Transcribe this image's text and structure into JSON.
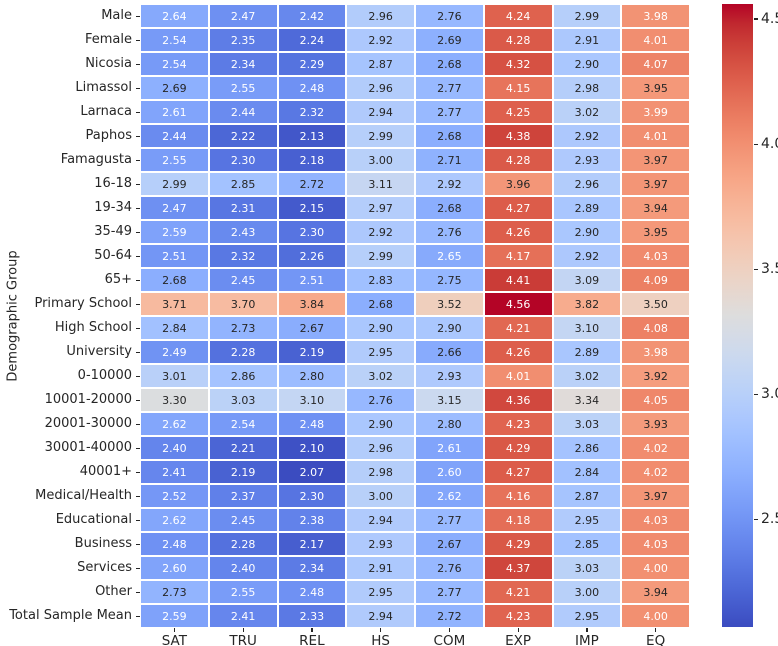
{
  "chart_data": {
    "type": "heatmap",
    "title": "",
    "xlabel": "",
    "ylabel": "Demographic Group",
    "colormap": "coolwarm",
    "vmin": 2.07,
    "vmax": 4.56,
    "annotated": true,
    "annotation_decimals": 2,
    "grid": false,
    "legend_position": "right-colorbar",
    "colorbar_ticks": [
      4.5,
      4.0,
      3.5,
      3.0,
      2.5
    ],
    "columns": [
      "SAT",
      "TRU",
      "REL",
      "HS",
      "COM",
      "EXP",
      "IMP",
      "EQ"
    ],
    "rows": [
      "Male",
      "Female",
      "Nicosia",
      "Limassol",
      "Larnaca",
      "Paphos",
      "Famagusta",
      "16-18",
      "19-34",
      "35-49",
      "50-64",
      "65+",
      "Primary School",
      "High School",
      "University",
      "0-10000",
      "10001-20000",
      "20001-30000",
      "30001-40000",
      "40001+",
      "Medical/Health",
      "Educational",
      "Business",
      "Services",
      "Other",
      "Total Sample Mean"
    ],
    "values": [
      [
        2.64,
        2.47,
        2.42,
        2.96,
        2.76,
        4.24,
        2.99,
        3.98
      ],
      [
        2.54,
        2.35,
        2.24,
        2.92,
        2.69,
        4.28,
        2.91,
        4.01
      ],
      [
        2.54,
        2.34,
        2.29,
        2.87,
        2.68,
        4.32,
        2.9,
        4.07
      ],
      [
        2.69,
        2.55,
        2.48,
        2.96,
        2.77,
        4.15,
        2.98,
        3.95
      ],
      [
        2.61,
        2.44,
        2.32,
        2.94,
        2.77,
        4.25,
        3.02,
        3.99
      ],
      [
        2.44,
        2.22,
        2.13,
        2.99,
        2.68,
        4.38,
        2.92,
        4.01
      ],
      [
        2.55,
        2.3,
        2.18,
        3.0,
        2.71,
        4.28,
        2.93,
        3.97
      ],
      [
        2.99,
        2.85,
        2.72,
        3.11,
        2.92,
        3.96,
        2.96,
        3.97
      ],
      [
        2.47,
        2.31,
        2.15,
        2.97,
        2.68,
        4.27,
        2.89,
        3.94
      ],
      [
        2.59,
        2.43,
        2.3,
        2.92,
        2.76,
        4.26,
        2.9,
        3.95
      ],
      [
        2.51,
        2.32,
        2.26,
        2.99,
        2.65,
        4.17,
        2.92,
        4.03
      ],
      [
        2.68,
        2.45,
        2.51,
        2.83,
        2.75,
        4.41,
        3.09,
        4.09
      ],
      [
        3.71,
        3.7,
        3.84,
        2.68,
        3.52,
        4.56,
        3.82,
        3.5
      ],
      [
        2.84,
        2.73,
        2.67,
        2.9,
        2.9,
        4.21,
        3.1,
        4.08
      ],
      [
        2.49,
        2.28,
        2.19,
        2.95,
        2.66,
        4.26,
        2.89,
        3.98
      ],
      [
        3.01,
        2.86,
        2.8,
        3.02,
        2.93,
        4.01,
        3.02,
        3.92
      ],
      [
        3.3,
        3.03,
        3.1,
        2.76,
        3.15,
        4.36,
        3.34,
        4.05
      ],
      [
        2.62,
        2.54,
        2.48,
        2.9,
        2.8,
        4.23,
        3.03,
        3.93
      ],
      [
        2.4,
        2.21,
        2.1,
        2.96,
        2.61,
        4.29,
        2.86,
        4.02
      ],
      [
        2.41,
        2.19,
        2.07,
        2.98,
        2.6,
        4.27,
        2.84,
        4.02
      ],
      [
        2.52,
        2.37,
        2.3,
        3.0,
        2.62,
        4.16,
        2.87,
        3.97
      ],
      [
        2.62,
        2.45,
        2.38,
        2.94,
        2.77,
        4.18,
        2.95,
        4.03
      ],
      [
        2.48,
        2.28,
        2.17,
        2.93,
        2.67,
        4.29,
        2.85,
        4.03
      ],
      [
        2.6,
        2.4,
        2.34,
        2.91,
        2.76,
        4.37,
        3.03,
        4.0
      ],
      [
        2.73,
        2.55,
        2.48,
        2.95,
        2.77,
        4.21,
        3.0,
        3.94
      ],
      [
        2.59,
        2.41,
        2.33,
        2.94,
        2.72,
        4.23,
        2.95,
        4.0
      ]
    ]
  }
}
